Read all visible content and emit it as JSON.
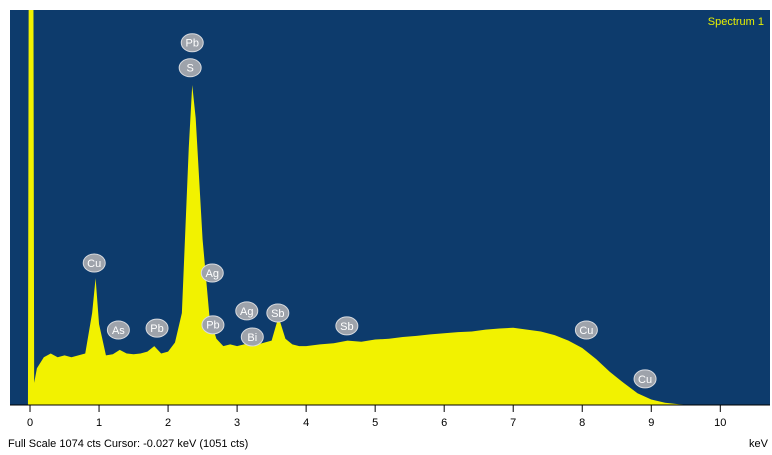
{
  "chart_data": {
    "type": "area",
    "title": "Spectrum 1",
    "x_label": "keV",
    "footer": "Full Scale 1074 cts  Cursor: -0.027 keV (1051 cts)",
    "color": "#f2f200",
    "background": "#0d3b6c",
    "x": [
      -0.29,
      -0.03,
      -0.02,
      0.05,
      0.06,
      0.1,
      0.2,
      0.3,
      0.4,
      0.5,
      0.6,
      0.7,
      0.8,
      0.9,
      0.95,
      1.0,
      1.1,
      1.2,
      1.3,
      1.4,
      1.5,
      1.6,
      1.7,
      1.8,
      1.9,
      2.0,
      2.1,
      2.2,
      2.3,
      2.35,
      2.4,
      2.5,
      2.6,
      2.7,
      2.8,
      2.9,
      3.0,
      3.1,
      3.2,
      3.3,
      3.4,
      3.5,
      3.6,
      3.7,
      3.8,
      3.9,
      4.0,
      4.2,
      4.4,
      4.6,
      4.8,
      5.0,
      5.2,
      5.4,
      5.6,
      5.8,
      6.0,
      6.2,
      6.4,
      6.6,
      6.8,
      7.0,
      7.2,
      7.4,
      7.6,
      7.8,
      8.0,
      8.2,
      8.4,
      8.6,
      8.8,
      9.0,
      9.2,
      9.4,
      9.6,
      10.72
    ],
    "values": [
      0,
      0,
      1074,
      1074,
      60,
      100,
      130,
      140,
      130,
      135,
      130,
      135,
      140,
      250,
      345,
      220,
      135,
      138,
      150,
      140,
      138,
      140,
      145,
      160,
      140,
      145,
      170,
      250,
      700,
      870,
      780,
      450,
      240,
      180,
      160,
      165,
      160,
      165,
      170,
      165,
      170,
      175,
      240,
      180,
      165,
      160,
      160,
      165,
      168,
      175,
      172,
      178,
      180,
      185,
      188,
      192,
      195,
      198,
      200,
      205,
      208,
      210,
      205,
      200,
      190,
      175,
      155,
      125,
      90,
      60,
      32,
      15,
      6,
      2,
      0,
      0
    ],
    "xlim": [
      -0.29,
      10.72
    ],
    "ylim": [
      0,
      1074
    ],
    "xticks": [
      0,
      1,
      2,
      3,
      4,
      5,
      6,
      7,
      8,
      9,
      10
    ],
    "annotations": [
      {
        "text": "Pb",
        "x": 2.35,
        "y": 985
      },
      {
        "text": "S",
        "x": 2.32,
        "y": 917
      },
      {
        "text": "Cu",
        "x": 0.93,
        "y": 386
      },
      {
        "text": "As",
        "x": 1.28,
        "y": 204
      },
      {
        "text": "Pb",
        "x": 1.84,
        "y": 209
      },
      {
        "text": "Ag",
        "x": 2.64,
        "y": 359
      },
      {
        "text": "Pb",
        "x": 2.65,
        "y": 218
      },
      {
        "text": "Ag",
        "x": 3.14,
        "y": 256
      },
      {
        "text": "Bi",
        "x": 3.22,
        "y": 185
      },
      {
        "text": "Sb",
        "x": 3.59,
        "y": 250
      },
      {
        "text": "Sb",
        "x": 4.59,
        "y": 215
      },
      {
        "text": "Cu",
        "x": 8.06,
        "y": 204
      },
      {
        "text": "Cu",
        "x": 8.91,
        "y": 71
      }
    ]
  }
}
